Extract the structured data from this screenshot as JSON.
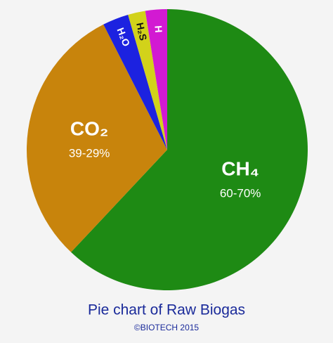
{
  "chart_data": {
    "type": "pie",
    "title": "Pie chart of Raw Biogas",
    "subtitle": "©BIOTECH 2015",
    "categories": [
      "CH₄",
      "CO₂",
      "H₂O",
      "H₂S",
      "H"
    ],
    "values": [
      62,
      30.5,
      3,
      2,
      2.5
    ],
    "value_labels": [
      "60-70%",
      "39-29%",
      null,
      null,
      null
    ],
    "colors": [
      "#1e8a14",
      "#c8840c",
      "#1c22e0",
      "#d2d21a",
      "#d21ad2"
    ],
    "start_angle": 0,
    "direction": "clockwise"
  }
}
